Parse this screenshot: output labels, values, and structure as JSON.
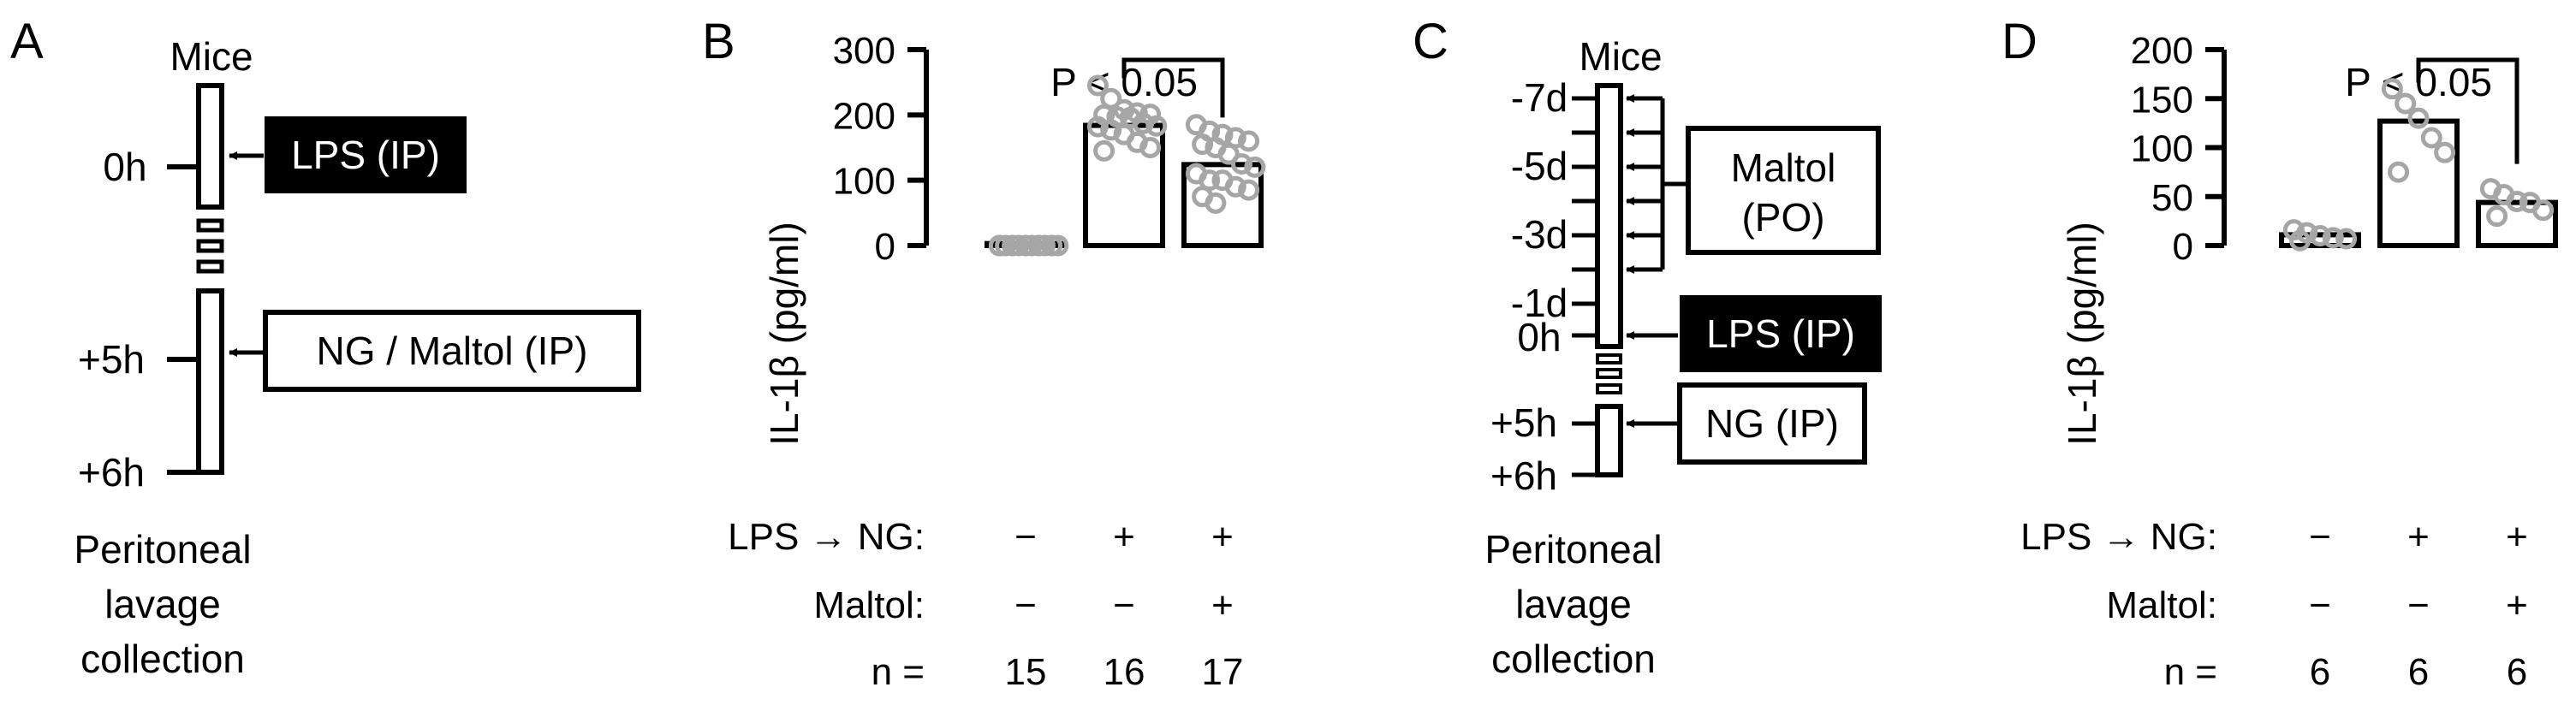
{
  "figure": {
    "panel_a": {
      "letter": "A",
      "title": "Mice",
      "times": [
        "0h",
        "+5h",
        "+6h"
      ],
      "lps_box": "LPS (IP)",
      "treat_box": "NG / Maltol (IP)",
      "footer": [
        "Peritoneal",
        "lavage",
        "collection"
      ]
    },
    "panel_c": {
      "letter": "C",
      "title": "Mice",
      "times": [
        "-7d",
        "-5d",
        "-3d",
        "-1d",
        "0h",
        "+5h",
        "+6h"
      ],
      "maltol_box": [
        "Maltol",
        "(PO)"
      ],
      "lps_box": "LPS (IP)",
      "ng_box": "NG (IP)",
      "footer": [
        "Peritoneal",
        "lavage",
        "collection"
      ]
    },
    "colors": {
      "points": "#a6a6a6",
      "black": "#000000"
    }
  },
  "chart_data": [
    {
      "panel": "B",
      "type": "bar",
      "ylabel": "IL-1β (pg/ml)",
      "ylim": [
        0,
        300
      ],
      "yticks": [
        "0",
        "100",
        "200",
        "300"
      ],
      "categories": [
        "LPS-NG-",
        "LPS-NG+",
        "LPS-NG+ Maltol+"
      ],
      "values": [
        3,
        184,
        124
      ],
      "points": [
        [
          0,
          0,
          0,
          0,
          0,
          0,
          0,
          0,
          0,
          0,
          0,
          0,
          0,
          0,
          0
        ],
        [
          245,
          225,
          208,
          203,
          201,
          200,
          197,
          196,
          187,
          183,
          182,
          177,
          170,
          158,
          150,
          145
        ],
        [
          185,
          175,
          170,
          165,
          160,
          155,
          150,
          140,
          125,
          120,
          110,
          100,
          100,
          90,
          85,
          75,
          65
        ]
      ],
      "significance": "P < 0.05",
      "row_labels": [
        "LPS → NG:",
        "Maltol:",
        "n ="
      ],
      "lps_ng": [
        "−",
        "+",
        "+"
      ],
      "maltol": [
        "−",
        "−",
        "+"
      ],
      "n": [
        "15",
        "16",
        "17"
      ]
    },
    {
      "panel": "D",
      "type": "bar",
      "ylabel": "IL-1β (pg/ml)",
      "ylim": [
        0,
        200
      ],
      "yticks": [
        "0",
        "50",
        "100",
        "150",
        "200"
      ],
      "categories": [
        "LPS-NG-",
        "LPS-NG+",
        "LPS-NG+ Maltol+"
      ],
      "values": [
        11,
        127,
        44
      ],
      "points": [
        [
          16,
          13,
          10,
          8,
          7,
          5
        ],
        [
          160,
          145,
          130,
          110,
          95,
          75
        ],
        [
          58,
          52,
          45,
          44,
          36,
          30
        ]
      ],
      "significance": "P < 0.05",
      "row_labels": [
        "LPS → NG:",
        "Maltol:",
        "n ="
      ],
      "lps_ng": [
        "−",
        "+",
        "+"
      ],
      "maltol": [
        "−",
        "−",
        "+"
      ],
      "n": [
        "6",
        "6",
        "6"
      ]
    }
  ]
}
